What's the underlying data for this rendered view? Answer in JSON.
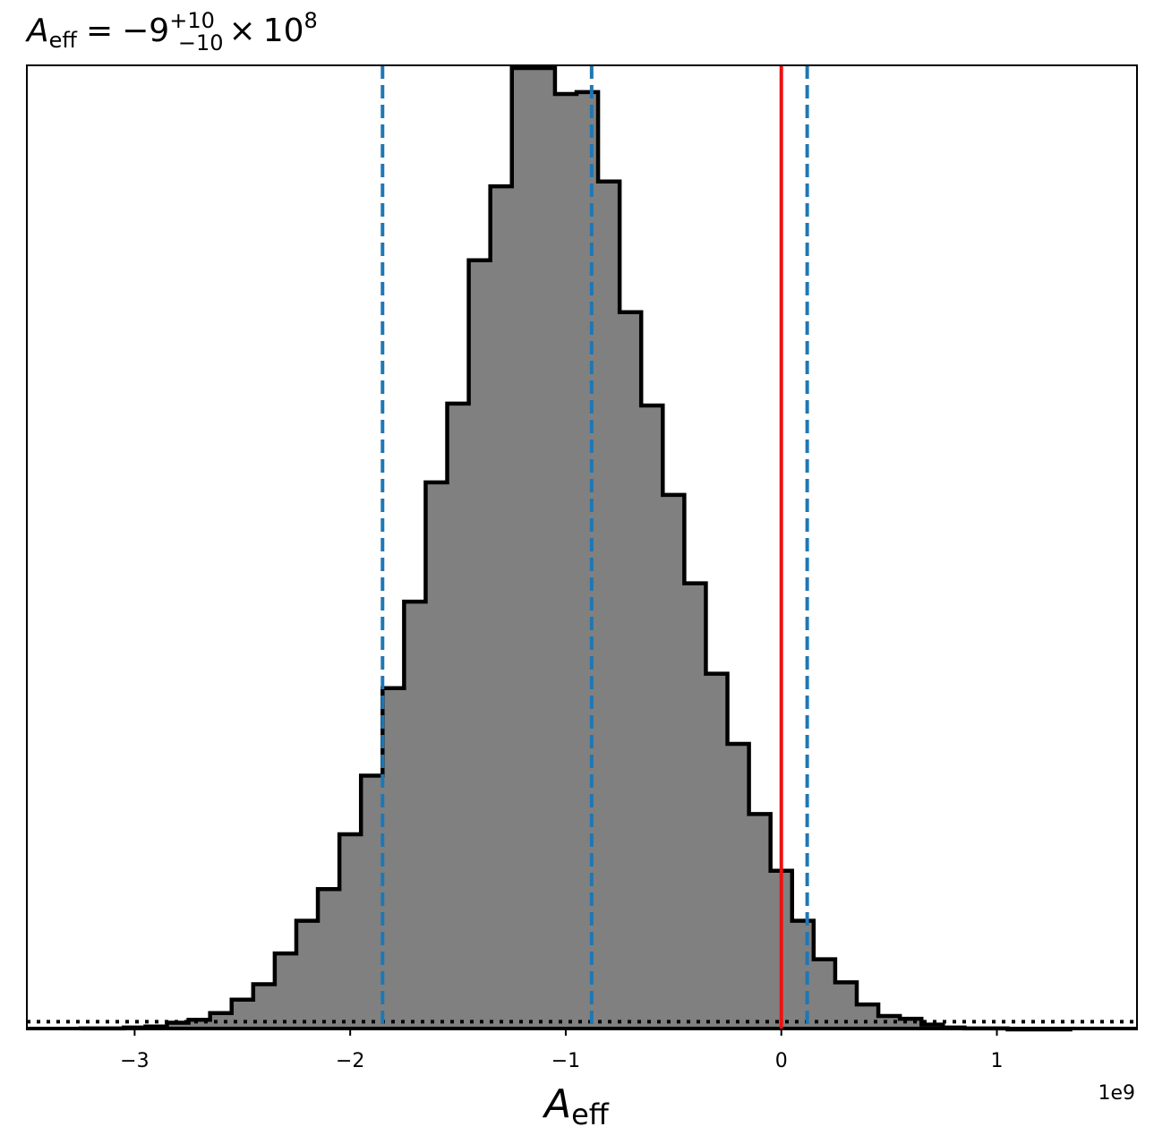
{
  "chart_data": {
    "type": "histogram",
    "title": {
      "symbol": "A",
      "subscript": "eff",
      "equals": "=",
      "median": "−9",
      "upper": "+10",
      "lower": "−10",
      "times": "×",
      "base": "10",
      "exponent": "8"
    },
    "xlabel": {
      "symbol": "A",
      "subscript": "eff"
    },
    "x_offset_label": "1e9",
    "xlim": [
      -3.5,
      1.65
    ],
    "ylim": [
      0,
      1.0
    ],
    "xticks": [
      {
        "value": -3,
        "label": "−3"
      },
      {
        "value": -2,
        "label": "−2"
      },
      {
        "value": -1,
        "label": "−1"
      },
      {
        "value": 0,
        "label": "0"
      },
      {
        "value": 1,
        "label": "1"
      }
    ],
    "bin_edges": [
      -3.25,
      -3.15,
      -3.05,
      -2.95,
      -2.85,
      -2.75,
      -2.65,
      -2.55,
      -2.45,
      -2.35,
      -2.25,
      -2.15,
      -2.05,
      -1.95,
      -1.85,
      -1.75,
      -1.65,
      -1.55,
      -1.45,
      -1.35,
      -1.25,
      -1.15,
      -1.05,
      -0.95,
      -0.85,
      -0.75,
      -0.65,
      -0.55,
      -0.45,
      -0.35,
      -0.25,
      -0.15,
      -0.05,
      0.05,
      0.15,
      0.25,
      0.35,
      0.45,
      0.55,
      0.65,
      0.75,
      0.85,
      0.95,
      1.05,
      1.15,
      1.25,
      1.35
    ],
    "bin_heights": [
      0.001,
      0.001,
      0.002,
      0.003,
      0.007,
      0.01,
      0.017,
      0.031,
      0.047,
      0.079,
      0.113,
      0.146,
      0.203,
      0.264,
      0.355,
      0.445,
      0.569,
      0.651,
      0.8,
      0.877,
      1.0,
      1.0,
      0.973,
      0.975,
      0.882,
      0.746,
      0.649,
      0.556,
      0.464,
      0.37,
      0.297,
      0.224,
      0.165,
      0.113,
      0.073,
      0.049,
      0.026,
      0.014,
      0.011,
      0.005,
      0.002,
      0.001,
      0.001,
      0.0,
      0.0,
      0.0
    ],
    "fill_color": "#808080",
    "edge_color": "#000000",
    "reference_lines": [
      {
        "x": -1.85,
        "style": "dashed",
        "color": "#1f77b4"
      },
      {
        "x": -0.88,
        "style": "dashed",
        "color": "#1f77b4"
      },
      {
        "x": 0.12,
        "style": "dashed",
        "color": "#1f77b4"
      },
      {
        "x": 0.0,
        "style": "solid",
        "color": "#ee1111"
      }
    ],
    "baseline_dotted_level": 0.008,
    "baseline_dotted_color": "#000000",
    "grid": false,
    "legend": "none"
  }
}
